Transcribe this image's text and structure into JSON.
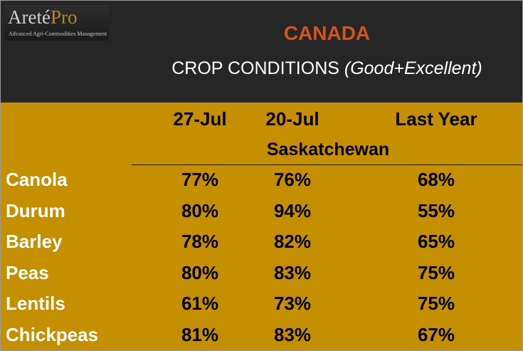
{
  "logo": {
    "name_part1": "Areté",
    "name_part2": "Pro",
    "tagline": "Advanced Agri-Commodities Management"
  },
  "country": "CANADA",
  "subtitle": {
    "main": "CROP CONDITIONS",
    "emphasis": "(Good+Excellent)"
  },
  "colors": {
    "header_bg": "#262626",
    "table_bg": "#c48f00",
    "country": "#d2561c",
    "row_label": "#ffffff",
    "values": "#000000"
  },
  "chart_data": {
    "type": "table",
    "title": "CROP CONDITIONS (Good+Excellent)",
    "region": "Saskatchewan",
    "columns": [
      "27-Jul",
      "20-Jul",
      "Last Year"
    ],
    "rows": [
      {
        "crop": "Canola",
        "values": [
          "77%",
          "76%",
          "68%"
        ]
      },
      {
        "crop": "Durum",
        "values": [
          "80%",
          "94%",
          "55%"
        ]
      },
      {
        "crop": "Barley",
        "values": [
          "78%",
          "82%",
          "65%"
        ]
      },
      {
        "crop": "Peas",
        "values": [
          "80%",
          "83%",
          "75%"
        ]
      },
      {
        "crop": "Lentils",
        "values": [
          "61%",
          "73%",
          "75%"
        ]
      },
      {
        "crop": "Chickpeas",
        "values": [
          "81%",
          "83%",
          "67%"
        ]
      }
    ]
  }
}
